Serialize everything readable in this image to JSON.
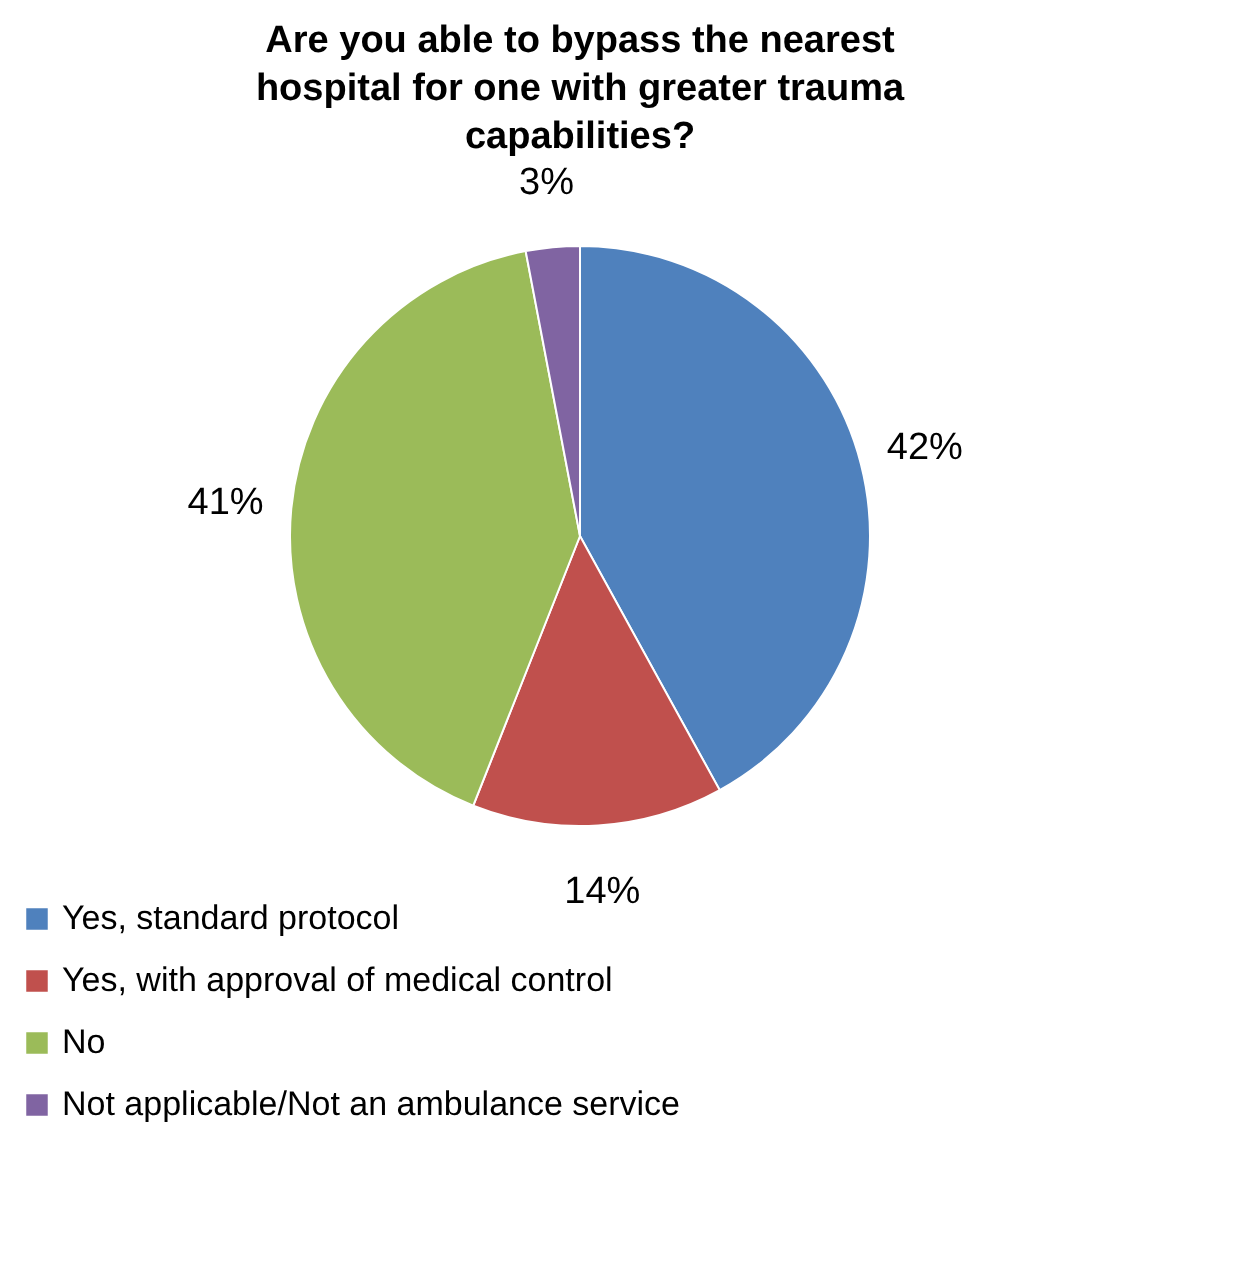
{
  "chart_data": {
    "type": "pie",
    "title": "Are you able to bypass the nearest\nhospital for one with greater trauma\ncapabilities?",
    "categories": [
      "Yes, standard protocol",
      "Yes, with approval of medical control",
      "No",
      "Not applicable/Not an ambulance service"
    ],
    "values": [
      42,
      14,
      41,
      3
    ],
    "value_labels": [
      "42%",
      "14%",
      "41%",
      "3%"
    ],
    "colors": [
      "#4f81bd",
      "#c0504d",
      "#9bbb59",
      "#8064a2"
    ],
    "legend": "bottom"
  }
}
